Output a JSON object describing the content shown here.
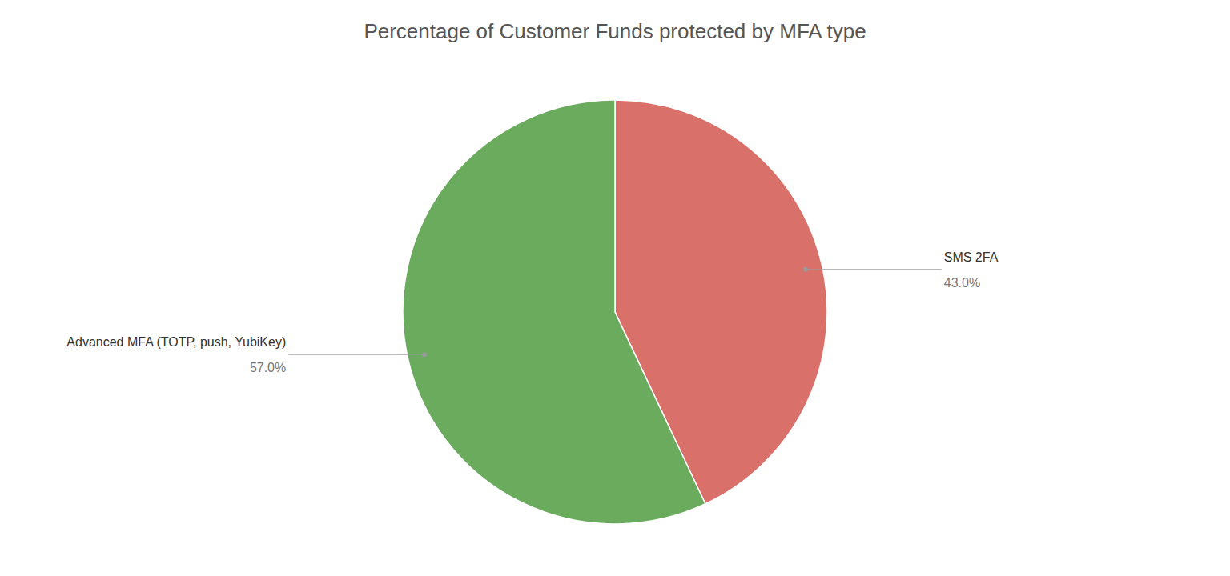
{
  "chart_data": {
    "type": "pie",
    "title": "Percentage of Customer Funds protected by MFA type",
    "categories": [
      "SMS 2FA",
      "Advanced MFA (TOTP, push, YubiKey)"
    ],
    "values": [
      43.0,
      57.0
    ],
    "value_labels": [
      "43.0%",
      "57.0%"
    ],
    "colors": [
      "#d9706a",
      "#6aab5e"
    ],
    "data_labels": true
  }
}
